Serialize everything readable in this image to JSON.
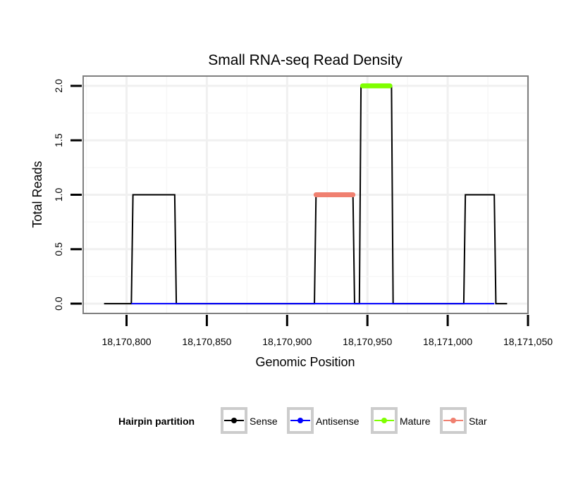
{
  "chart_data": {
    "type": "line",
    "title": "Small RNA-seq Read Density",
    "xlabel": "Genomic Position",
    "ylabel": "Total Reads",
    "xlim": [
      18170773,
      18171050
    ],
    "ylim": [
      -0.09,
      2.09
    ],
    "x_ticks": [
      18170800,
      18170850,
      18170900,
      18170950,
      18171000,
      18171050
    ],
    "x_tick_labels": [
      "18,170,800",
      "18,170,850",
      "18,170,900",
      "18,170,950",
      "18,171,000",
      "18,171,050"
    ],
    "y_ticks": [
      0,
      0.5,
      1,
      1.5,
      2
    ],
    "y_tick_labels": [
      "0.0",
      "0.5",
      "1.0",
      "1.5",
      "2.0"
    ],
    "grid": true,
    "legend_title": "Hairpin partition",
    "legend_position": "bottom",
    "series": [
      {
        "name": "Sense",
        "color": "#000000",
        "x": [
          18170786,
          18170803,
          18170804,
          18170830,
          18170831,
          18170917,
          18170918,
          18170941,
          18170942,
          18170945,
          18170946,
          18170965,
          18170966,
          18171010,
          18171011,
          18171029,
          18171030,
          18171037
        ],
        "y": [
          0,
          0,
          1,
          1,
          0,
          0,
          1,
          1,
          0,
          0,
          2,
          2,
          0,
          0,
          1,
          1,
          0,
          0
        ]
      },
      {
        "name": "Antisense",
        "color": "#0000ff",
        "x": [
          18170803,
          18170830,
          18170918,
          18170941,
          18170946,
          18170965,
          18171011,
          18171029
        ],
        "y": [
          0,
          0,
          0,
          0,
          0,
          0,
          0,
          0
        ]
      },
      {
        "name": "Mature",
        "color": "#7fff00",
        "x": [
          18170947,
          18170964
        ],
        "y": [
          2,
          2
        ]
      },
      {
        "name": "Star",
        "color": "#f08070",
        "x": [
          18170918,
          18170941
        ],
        "y": [
          1,
          1
        ]
      }
    ]
  }
}
